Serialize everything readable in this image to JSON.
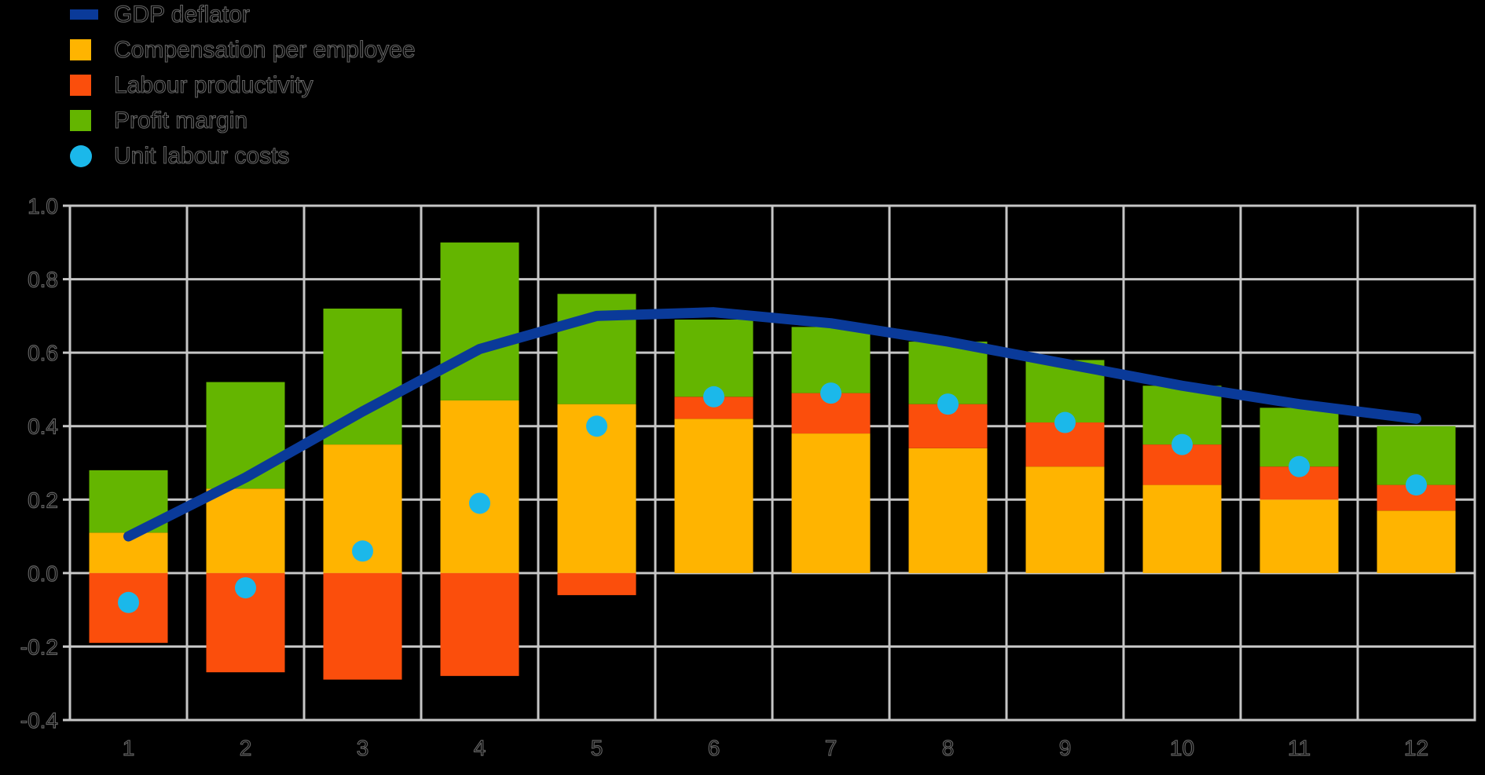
{
  "legend": {
    "items": [
      {
        "label": "GDP deflator",
        "marker": "line",
        "color": "#0A3A99"
      },
      {
        "label": "Compensation per employee",
        "marker": "square",
        "color": "#FFB400"
      },
      {
        "label": "Labour productivity",
        "marker": "square",
        "color": "#FB4E0C"
      },
      {
        "label": "Profit margin",
        "marker": "square",
        "color": "#64B500"
      },
      {
        "label": "Unit labour costs",
        "marker": "circle",
        "color": "#1BB8EA"
      }
    ]
  },
  "chart_data": {
    "type": "bar",
    "subtype": "combo: signed stacked bars + line series + point series",
    "title": "",
    "xlabel": "",
    "ylabel": "",
    "categories": [
      "1",
      "2",
      "3",
      "4",
      "5",
      "6",
      "7",
      "8",
      "9",
      "10",
      "11",
      "12"
    ],
    "bar_series": [
      {
        "name": "Compensation per employee",
        "color": "#FFB400",
        "values": [
          0.11,
          0.23,
          0.35,
          0.47,
          0.46,
          0.42,
          0.38,
          0.34,
          0.29,
          0.24,
          0.2,
          0.17
        ]
      },
      {
        "name": "Labour productivity",
        "color": "#FB4E0C",
        "values": [
          -0.19,
          -0.27,
          -0.29,
          -0.28,
          -0.06,
          0.06,
          0.11,
          0.12,
          0.12,
          0.11,
          0.09,
          0.07
        ]
      },
      {
        "name": "Profit margin",
        "color": "#64B500",
        "values": [
          0.17,
          0.29,
          0.37,
          0.43,
          0.3,
          0.21,
          0.18,
          0.17,
          0.17,
          0.16,
          0.16,
          0.16
        ]
      }
    ],
    "line_series": {
      "name": "GDP deflator",
      "color": "#0A3A99",
      "values": [
        0.1,
        0.26,
        0.44,
        0.61,
        0.7,
        0.71,
        0.68,
        0.63,
        0.57,
        0.51,
        0.46,
        0.42
      ]
    },
    "point_series": {
      "name": "Unit labour costs",
      "color": "#1BB8EA",
      "values": [
        -0.08,
        -0.04,
        0.06,
        0.19,
        0.4,
        0.48,
        0.49,
        0.46,
        0.41,
        0.35,
        0.29,
        0.24
      ]
    },
    "ylim": [
      -0.4,
      1.0
    ],
    "ytick_step": 0.2,
    "ytick_labels": [
      "1.0",
      "0.8",
      "0.6",
      "0.4",
      "0.2",
      "0.0",
      "-0.2",
      "-0.4"
    ],
    "xtick_labels": [
      "1",
      "2",
      "3",
      "4",
      "5",
      "6",
      "7",
      "8",
      "9",
      "10",
      "11",
      "12"
    ],
    "grid": true,
    "legend_position": "top-left",
    "stacking": "positives stack up from zero, negatives stack down from zero"
  },
  "style": {
    "background": "#000000",
    "gridline_color": "#C6C6C6",
    "label_fill": "#000000",
    "label_outline": "rgba(162,162,162,0.62)"
  }
}
